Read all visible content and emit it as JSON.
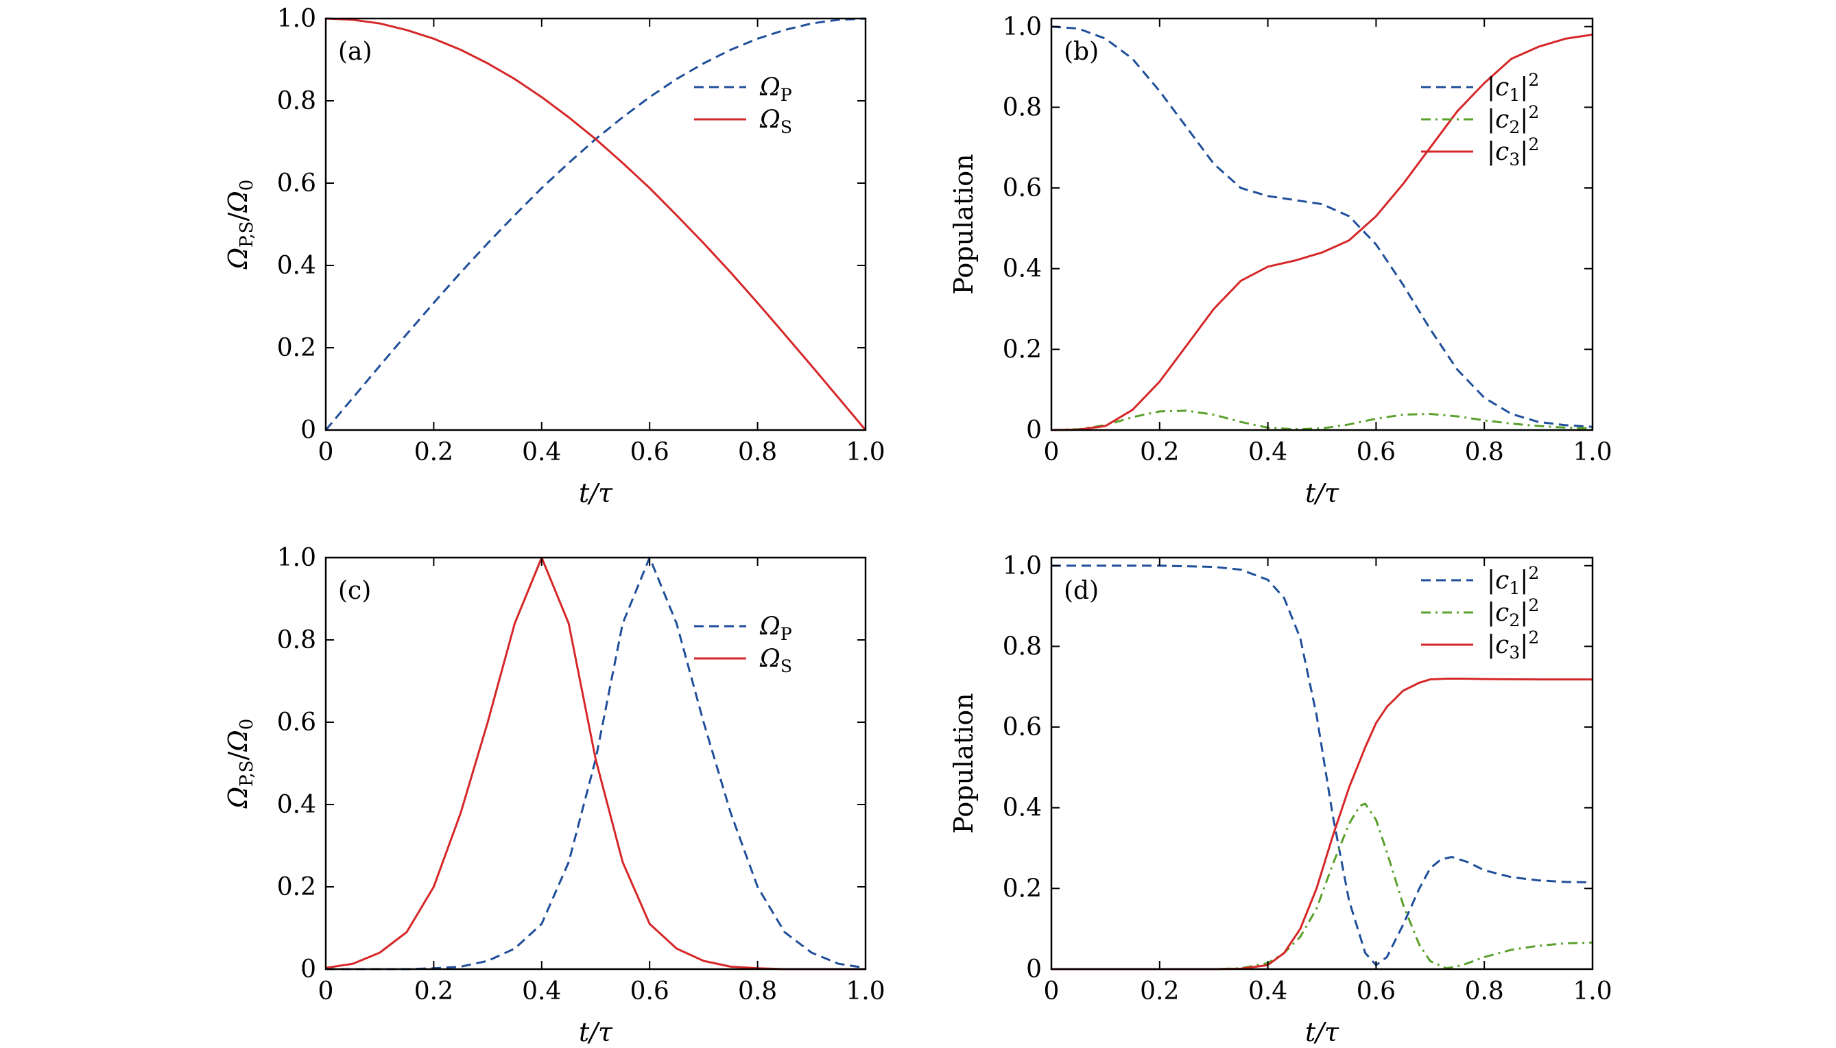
{
  "chart_data": [
    {
      "id": "a",
      "type": "line",
      "panel_label": "(a)",
      "xlabel": "t/τ",
      "ylabel": "ΩP,S/Ω0",
      "xlim": [
        0,
        1
      ],
      "ylim": [
        0,
        1
      ],
      "xticks": [
        0,
        0.2,
        0.4,
        0.6,
        0.8,
        1.0
      ],
      "xtick_labels": [
        "0",
        "0.2",
        "0.4",
        "0.6",
        "0.8",
        "1.0"
      ],
      "yticks": [
        0,
        0.2,
        0.4,
        0.6,
        0.8,
        1.0
      ],
      "ytick_labels": [
        "0",
        "0.2",
        "0.4",
        "0.6",
        "0.8",
        "1.0"
      ],
      "legend": {
        "position": "top-right"
      },
      "series": [
        {
          "name": "ΩP",
          "sym": "Ω",
          "sub": "P",
          "sup": "",
          "style": "dashed",
          "color": "#1f4e9a",
          "x": [
            0,
            0.05,
            0.1,
            0.15,
            0.2,
            0.25,
            0.3,
            0.35,
            0.4,
            0.45,
            0.5,
            0.55,
            0.6,
            0.65,
            0.7,
            0.75,
            0.8,
            0.85,
            0.9,
            0.95,
            1.0
          ],
          "values": [
            0,
            0.078,
            0.156,
            0.233,
            0.309,
            0.383,
            0.454,
            0.522,
            0.588,
            0.649,
            0.707,
            0.76,
            0.809,
            0.853,
            0.891,
            0.924,
            0.951,
            0.972,
            0.988,
            0.997,
            1.0
          ]
        },
        {
          "name": "ΩS",
          "sym": "Ω",
          "sub": "S",
          "sup": "",
          "style": "solid",
          "color": "#d62728",
          "x": [
            0,
            0.05,
            0.1,
            0.15,
            0.2,
            0.25,
            0.3,
            0.35,
            0.4,
            0.45,
            0.5,
            0.55,
            0.6,
            0.65,
            0.7,
            0.75,
            0.8,
            0.85,
            0.9,
            0.95,
            1.0
          ],
          "values": [
            1.0,
            0.997,
            0.988,
            0.972,
            0.951,
            0.924,
            0.891,
            0.853,
            0.809,
            0.76,
            0.707,
            0.649,
            0.588,
            0.522,
            0.454,
            0.383,
            0.309,
            0.233,
            0.156,
            0.078,
            0
          ]
        }
      ]
    },
    {
      "id": "b",
      "type": "line",
      "panel_label": "(b)",
      "xlabel": "t/τ",
      "ylabel": "Population",
      "xlim": [
        0,
        1
      ],
      "ylim": [
        0,
        1.02
      ],
      "xticks": [
        0,
        0.2,
        0.4,
        0.6,
        0.8,
        1.0
      ],
      "xtick_labels": [
        "0",
        "0.2",
        "0.4",
        "0.6",
        "0.8",
        "1.0"
      ],
      "yticks": [
        0,
        0.2,
        0.4,
        0.6,
        0.8,
        1.0
      ],
      "ytick_labels": [
        "0",
        "0.2",
        "0.4",
        "0.6",
        "0.8",
        "1.0"
      ],
      "legend": {
        "position": "top-right"
      },
      "series": [
        {
          "name": "|c1|2",
          "sym": "c",
          "sub": "1",
          "sup": "2",
          "style": "dashed",
          "color": "#1f4e9a",
          "x": [
            0,
            0.05,
            0.1,
            0.15,
            0.2,
            0.25,
            0.3,
            0.35,
            0.4,
            0.45,
            0.5,
            0.55,
            0.6,
            0.65,
            0.7,
            0.75,
            0.8,
            0.85,
            0.9,
            0.95,
            1.0
          ],
          "values": [
            1.0,
            0.995,
            0.97,
            0.92,
            0.84,
            0.75,
            0.66,
            0.6,
            0.58,
            0.57,
            0.56,
            0.53,
            0.46,
            0.36,
            0.25,
            0.15,
            0.08,
            0.04,
            0.02,
            0.012,
            0.008
          ]
        },
        {
          "name": "|c2|2",
          "sym": "c",
          "sub": "2",
          "sup": "2",
          "style": "dashdot",
          "color": "#5aa02c",
          "x": [
            0,
            0.05,
            0.1,
            0.15,
            0.2,
            0.25,
            0.3,
            0.35,
            0.4,
            0.45,
            0.5,
            0.55,
            0.6,
            0.65,
            0.7,
            0.75,
            0.8,
            0.85,
            0.9,
            0.95,
            1.0
          ],
          "values": [
            0,
            0.002,
            0.012,
            0.032,
            0.046,
            0.048,
            0.038,
            0.02,
            0.006,
            0.002,
            0.004,
            0.014,
            0.028,
            0.038,
            0.04,
            0.034,
            0.024,
            0.016,
            0.01,
            0.006,
            0.004
          ]
        },
        {
          "name": "|c3|2",
          "sym": "c",
          "sub": "3",
          "sup": "2",
          "style": "solid",
          "color": "#d62728",
          "x": [
            0,
            0.05,
            0.1,
            0.15,
            0.2,
            0.25,
            0.3,
            0.35,
            0.4,
            0.45,
            0.5,
            0.55,
            0.6,
            0.65,
            0.7,
            0.75,
            0.8,
            0.85,
            0.9,
            0.95,
            1.0
          ],
          "values": [
            0,
            0.001,
            0.01,
            0.05,
            0.12,
            0.21,
            0.3,
            0.37,
            0.405,
            0.42,
            0.44,
            0.47,
            0.53,
            0.61,
            0.7,
            0.79,
            0.86,
            0.92,
            0.95,
            0.97,
            0.98
          ]
        }
      ]
    },
    {
      "id": "c",
      "type": "line",
      "panel_label": "(c)",
      "xlabel": "t/τ",
      "ylabel": "ΩP,S/Ω0",
      "xlim": [
        0,
        1
      ],
      "ylim": [
        0,
        1
      ],
      "xticks": [
        0,
        0.2,
        0.4,
        0.6,
        0.8,
        1.0
      ],
      "xtick_labels": [
        "0",
        "0.2",
        "0.4",
        "0.6",
        "0.8",
        "1.0"
      ],
      "yticks": [
        0,
        0.2,
        0.4,
        0.6,
        0.8,
        1.0
      ],
      "ytick_labels": [
        "0",
        "0.2",
        "0.4",
        "0.6",
        "0.8",
        "1.0"
      ],
      "legend": {
        "position": "top-right"
      },
      "series": [
        {
          "name": "ΩP",
          "sym": "Ω",
          "sub": "P",
          "sup": "",
          "style": "dashed",
          "color": "#1f4e9a",
          "x": [
            0,
            0.05,
            0.1,
            0.15,
            0.2,
            0.25,
            0.3,
            0.35,
            0.4,
            0.45,
            0.5,
            0.55,
            0.6,
            0.65,
            0.7,
            0.75,
            0.8,
            0.85,
            0.9,
            0.95,
            1.0
          ],
          "values": [
            0,
            0,
            0,
            0,
            0.002,
            0.006,
            0.02,
            0.05,
            0.11,
            0.26,
            0.51,
            0.84,
            1.0,
            0.84,
            0.6,
            0.38,
            0.2,
            0.09,
            0.04,
            0.013,
            0.003
          ]
        },
        {
          "name": "ΩS",
          "sym": "Ω",
          "sub": "S",
          "sup": "",
          "style": "solid",
          "color": "#d62728",
          "x": [
            0,
            0.05,
            0.1,
            0.15,
            0.2,
            0.25,
            0.3,
            0.35,
            0.4,
            0.45,
            0.5,
            0.55,
            0.6,
            0.65,
            0.7,
            0.75,
            0.8,
            0.85,
            0.9,
            0.95,
            1.0
          ],
          "values": [
            0.003,
            0.013,
            0.04,
            0.09,
            0.2,
            0.38,
            0.6,
            0.84,
            1.0,
            0.84,
            0.51,
            0.26,
            0.11,
            0.05,
            0.02,
            0.006,
            0.002,
            0,
            0,
            0,
            0
          ]
        }
      ]
    },
    {
      "id": "d",
      "type": "line",
      "panel_label": "(d)",
      "xlabel": "t/τ",
      "ylabel": "Population",
      "xlim": [
        0,
        1
      ],
      "ylim": [
        0,
        1.02
      ],
      "xticks": [
        0,
        0.2,
        0.4,
        0.6,
        0.8,
        1.0
      ],
      "xtick_labels": [
        "0",
        "0.2",
        "0.4",
        "0.6",
        "0.8",
        "1.0"
      ],
      "yticks": [
        0,
        0.2,
        0.4,
        0.6,
        0.8,
        1.0
      ],
      "ytick_labels": [
        "0",
        "0.2",
        "0.4",
        "0.6",
        "0.8",
        "1.0"
      ],
      "legend": {
        "position": "top-right"
      },
      "series": [
        {
          "name": "|c1|2",
          "sym": "c",
          "sub": "1",
          "sup": "2",
          "style": "dashed",
          "color": "#1f4e9a",
          "x": [
            0,
            0.1,
            0.2,
            0.3,
            0.35,
            0.4,
            0.43,
            0.46,
            0.49,
            0.52,
            0.55,
            0.58,
            0.6,
            0.62,
            0.65,
            0.68,
            0.7,
            0.72,
            0.74,
            0.77,
            0.8,
            0.85,
            0.9,
            0.95,
            1.0
          ],
          "values": [
            1.0,
            1.0,
            1.0,
            0.997,
            0.99,
            0.965,
            0.92,
            0.82,
            0.63,
            0.38,
            0.17,
            0.04,
            0.01,
            0.03,
            0.11,
            0.2,
            0.25,
            0.272,
            0.278,
            0.265,
            0.245,
            0.228,
            0.22,
            0.216,
            0.215
          ]
        },
        {
          "name": "|c2|2",
          "sym": "c",
          "sub": "2",
          "sup": "2",
          "style": "dashdot",
          "color": "#5aa02c",
          "x": [
            0,
            0.2,
            0.3,
            0.35,
            0.4,
            0.43,
            0.46,
            0.49,
            0.52,
            0.55,
            0.57,
            0.58,
            0.6,
            0.62,
            0.65,
            0.68,
            0.7,
            0.73,
            0.76,
            0.8,
            0.85,
            0.9,
            0.95,
            1.0
          ],
          "values": [
            0,
            0,
            0,
            0.002,
            0.015,
            0.04,
            0.08,
            0.15,
            0.26,
            0.36,
            0.405,
            0.41,
            0.37,
            0.29,
            0.16,
            0.06,
            0.02,
            0.002,
            0.01,
            0.03,
            0.048,
            0.058,
            0.064,
            0.066
          ]
        },
        {
          "name": "|c3|2",
          "sym": "c",
          "sub": "3",
          "sup": "2",
          "style": "solid",
          "color": "#d62728",
          "x": [
            0,
            0.2,
            0.3,
            0.35,
            0.4,
            0.43,
            0.46,
            0.49,
            0.52,
            0.55,
            0.58,
            0.6,
            0.62,
            0.65,
            0.68,
            0.7,
            0.73,
            0.76,
            0.8,
            0.9,
            1.0
          ],
          "values": [
            0,
            0,
            0,
            0.001,
            0.01,
            0.04,
            0.1,
            0.2,
            0.33,
            0.45,
            0.55,
            0.61,
            0.65,
            0.69,
            0.71,
            0.718,
            0.72,
            0.72,
            0.719,
            0.718,
            0.718
          ]
        }
      ]
    }
  ]
}
